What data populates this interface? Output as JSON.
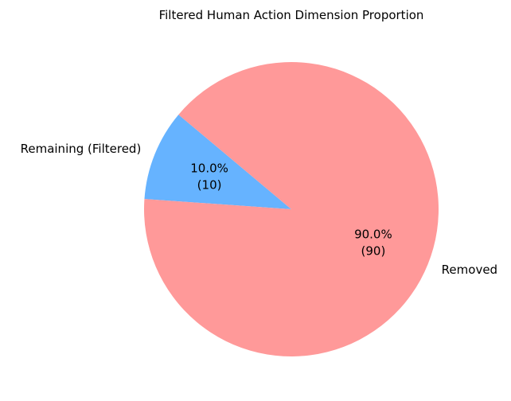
{
  "chart_data": {
    "type": "pie",
    "title": "Filtered Human Action Dimension Proportion",
    "labels": [
      "Remaining (Filtered)",
      "Removed"
    ],
    "values": [
      10,
      90
    ],
    "percent_labels": [
      "10.0%",
      "90.0%"
    ],
    "count_labels": [
      "(10)",
      "(90)"
    ],
    "colors": [
      "#66b3ff",
      "#ff9999"
    ],
    "start_angle_deg": 140,
    "direction": "counterclockwise",
    "legend": "none"
  }
}
